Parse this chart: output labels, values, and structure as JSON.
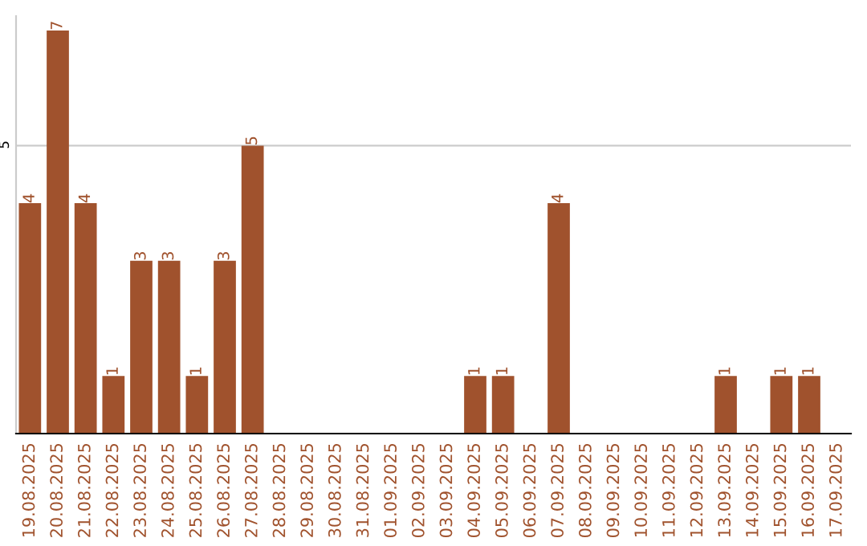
{
  "chart_data": {
    "type": "bar",
    "categories": [
      "19.08.2025",
      "20.08.2025",
      "21.08.2025",
      "22.08.2025",
      "23.08.2025",
      "24.08.2025",
      "25.08.2025",
      "26.08.2025",
      "27.08.2025",
      "28.08.2025",
      "29.08.2025",
      "30.08.2025",
      "31.08.2025",
      "01.09.2025",
      "02.09.2025",
      "03.09.2025",
      "04.09.2025",
      "05.09.2025",
      "06.09.2025",
      "07.09.2025",
      "08.09.2025",
      "09.09.2025",
      "10.09.2025",
      "11.09.2025",
      "12.09.2025",
      "13.09.2025",
      "14.09.2025",
      "15.09.2025",
      "16.09.2025",
      "17.09.2025"
    ],
    "values": [
      4,
      7,
      4,
      1,
      3,
      3,
      1,
      3,
      5,
      0,
      0,
      0,
      0,
      0,
      0,
      0,
      1,
      1,
      0,
      4,
      0,
      0,
      0,
      0,
      0,
      1,
      0,
      1,
      1,
      0
    ],
    "value_labels": [
      "4",
      "7",
      "4",
      "1",
      "3",
      "3",
      "1",
      "3",
      "5",
      null,
      null,
      null,
      null,
      null,
      null,
      null,
      "1",
      "1",
      null,
      "4",
      null,
      null,
      null,
      null,
      null,
      "1",
      null,
      "1",
      "1",
      null
    ],
    "color": "#a0522d",
    "ylim": [
      0,
      7.25
    ],
    "yticks": [
      5
    ],
    "grid": "y"
  }
}
